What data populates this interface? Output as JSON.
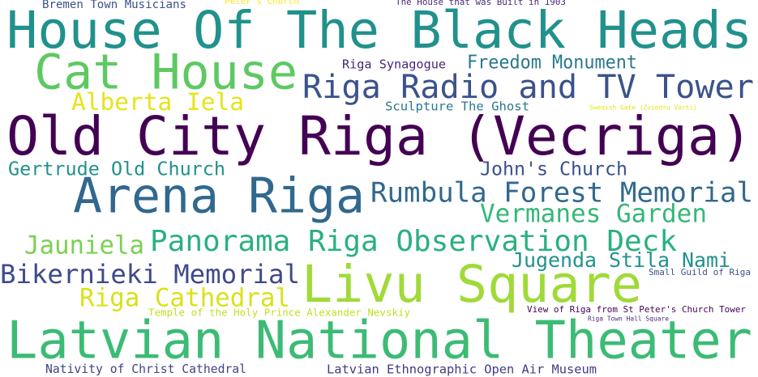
{
  "chart_data": {
    "type": "wordcloud",
    "words": [
      {
        "text": "Bremen Town Musicians",
        "color": "#3b528b"
      },
      {
        "text": "Peter's Church",
        "color": "#fde725"
      },
      {
        "text": "The House that was Built in 1903",
        "color": "#482878"
      },
      {
        "text": "House Of The Black Heads",
        "color": "#21918c"
      },
      {
        "text": "Cat House",
        "color": "#5ec962"
      },
      {
        "text": "Riga Synagogue",
        "color": "#482878"
      },
      {
        "text": "Freedom Monument",
        "color": "#2a788e"
      },
      {
        "text": "Riga Radio and TV Tower",
        "color": "#3b528b"
      },
      {
        "text": "Alberta Iela",
        "color": "#e5e419"
      },
      {
        "text": "Sculpture The Ghost",
        "color": "#2a788e"
      },
      {
        "text": "Swedish Gate (Zviedru Varti)",
        "color": "#e5e419"
      },
      {
        "text": "Old City Riga (Vecriga)",
        "color": "#440154"
      },
      {
        "text": "Gertrude Old Church",
        "color": "#21918c"
      },
      {
        "text": "John's Church",
        "color": "#3b528b"
      },
      {
        "text": "Arena Riga",
        "color": "#31688e"
      },
      {
        "text": "Rumbula Forest Memorial",
        "color": "#31688e"
      },
      {
        "text": "Vermanes Garden",
        "color": "#35b779"
      },
      {
        "text": "Jauniela",
        "color": "#7ad151"
      },
      {
        "text": "Panorama Riga Observation Deck",
        "color": "#2ab07f"
      },
      {
        "text": "Jugenda Stila Nami",
        "color": "#21918c"
      },
      {
        "text": "Bikernieki Memorial",
        "color": "#3e4a89"
      },
      {
        "text": "Small Guild of Riga",
        "color": "#3b528b"
      },
      {
        "text": "Livu Square",
        "color": "#a0da39"
      },
      {
        "text": "Riga Cathedral",
        "color": "#d8e219"
      },
      {
        "text": "Temple of the Holy Prince Alexander Nevskiy",
        "color": "#c2df23"
      },
      {
        "text": "View of Riga from St Peter's Church Tower",
        "color": "#440154"
      },
      {
        "text": "Riga Town Hall Square",
        "color": "#482878"
      },
      {
        "text": "Latvian National Theater",
        "color": "#3cbb75"
      },
      {
        "text": "Nativity of Christ Cathedral",
        "color": "#414487"
      },
      {
        "text": "Latvian Ethnographic Open Air Museum",
        "color": "#443983"
      }
    ]
  }
}
